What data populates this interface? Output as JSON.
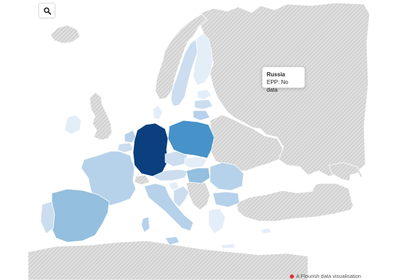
{
  "search": {
    "icon": "search-icon"
  },
  "tooltip": {
    "title": "Russia",
    "metric_label": "EPP",
    "separator": ":",
    "value": "No data"
  },
  "credit": {
    "text": "A Flourish data visualisation",
    "dot_color": "#e0313a"
  },
  "colors": {
    "no_data": "#d2d2d2",
    "very_light": "#e4eef8",
    "light": "#cbddef",
    "medium_light": "#b6d1ea",
    "medium": "#94bfde",
    "poland": "#4792c8",
    "germany": "#0b3f7d",
    "background": "#ffffff",
    "hatch": "#bdbdbd"
  }
}
